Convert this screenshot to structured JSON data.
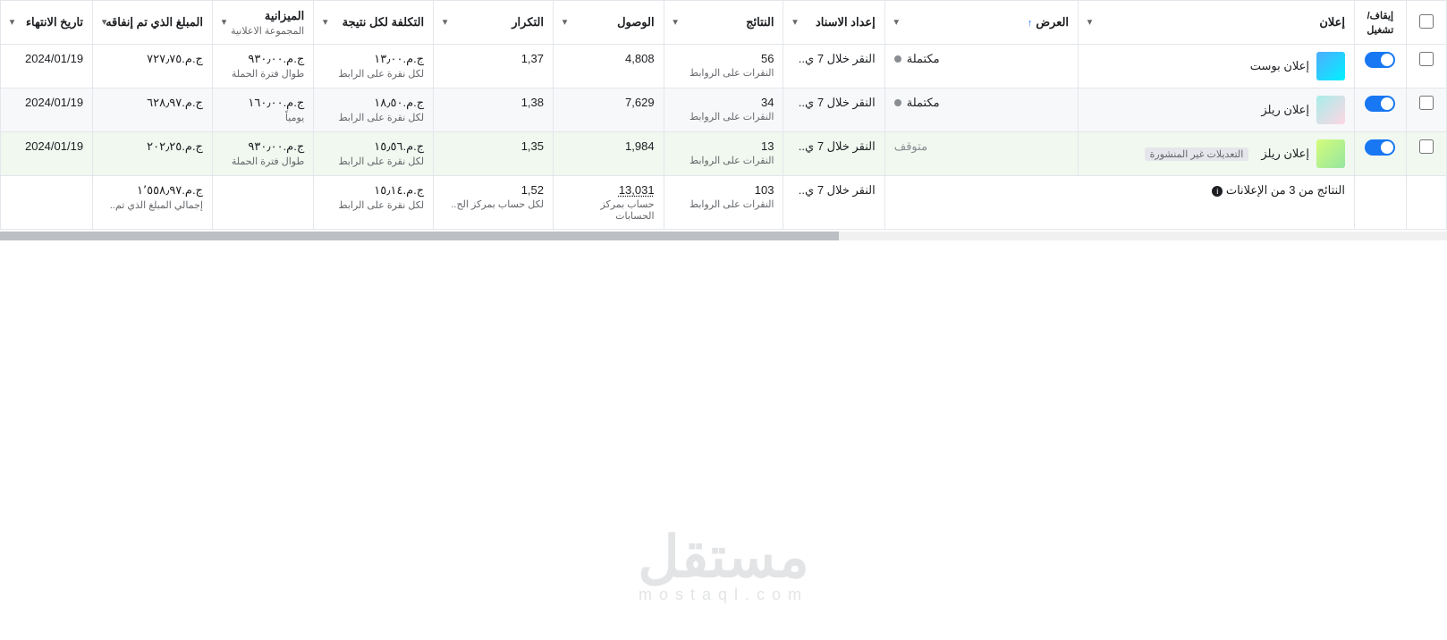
{
  "columns": {
    "select": "",
    "toggle": "إيقاف/\nتشغيل",
    "ad": "إعلان",
    "delivery": "العرض",
    "delivery_sort_arrow": "↑",
    "attribution": "إعداد الاسناد",
    "results": "النتائج",
    "reach": "الوصول",
    "frequency": "التكرار",
    "cost": "التكلفة لكل نتيجة",
    "budget": "الميزانية",
    "budget_sub": "المجموعة الاعلانية",
    "spent": "المبلغ الذي تم إنفاقه",
    "end_date": "تاريخ الانتهاء"
  },
  "rows": [
    {
      "ad_name": "إعلان بوست",
      "badge": "",
      "delivery": "مكتملة",
      "attribution": "النقر خلال 7 ي..",
      "results": "56",
      "results_sub": "النقرات على الروابط",
      "reach": "4,808",
      "frequency": "1,37",
      "cost": "ج.م.‏١٣٫٠٠",
      "cost_sub": "لكل نقرة على الرابط",
      "budget": "ج.م.‏٩٣٠٫٠٠",
      "budget_sub": "طوال فترة الحملة",
      "spent": "ج.م.‏٧٢٧٫٧٥",
      "end_date": "2024/01/19"
    },
    {
      "ad_name": "إعلان ريلز",
      "badge": "",
      "delivery": "مكتملة",
      "attribution": "النقر خلال 7 ي..",
      "results": "34",
      "results_sub": "النقرات على الروابط",
      "reach": "7,629",
      "frequency": "1,38",
      "cost": "ج.م.‏١٨٫٥٠",
      "cost_sub": "لكل نقرة على الرابط",
      "budget": "ج.م.‏١٦٠٫٠٠",
      "budget_sub": "يومياً",
      "spent": "ج.م.‏٦٢٨٫٩٧",
      "end_date": "2024/01/19"
    },
    {
      "ad_name": "إعلان ريلز",
      "badge": "التعديلات غير المنشورة",
      "delivery": "متوقف",
      "attribution": "النقر خلال 7 ي..",
      "results": "13",
      "results_sub": "النقرات على الروابط",
      "reach": "1,984",
      "frequency": "1,35",
      "cost": "ج.م.‏١٥٫٥٦",
      "cost_sub": "لكل نقرة على الرابط",
      "budget": "ج.م.‏٩٣٠٫٠٠",
      "budget_sub": "طوال فترة الحملة",
      "spent": "ج.م.‏٢٠٢٫٢٥",
      "end_date": "2024/01/19"
    }
  ],
  "summary": {
    "label": "النتائج من 3 من الإعلانات",
    "attribution": "النقر خلال 7 ي..",
    "results": "103",
    "results_sub": "النقرات على الروابط",
    "reach": "13,031",
    "reach_sub": "حساب بمركز الحسابات",
    "frequency": "1,52",
    "frequency_sub": "لكل حساب بمركز الح..",
    "cost": "ج.م.‏١٥٫١٤",
    "cost_sub": "لكل نقرة على الرابط",
    "spent": "ج.م.‏١٬٥٥٨٫٩٧",
    "spent_sub": "إجمالي المبلغ الذي تم.."
  },
  "watermark": {
    "main": "مستقل",
    "sub": "mostaql.com"
  },
  "caret_glyph": "▾"
}
